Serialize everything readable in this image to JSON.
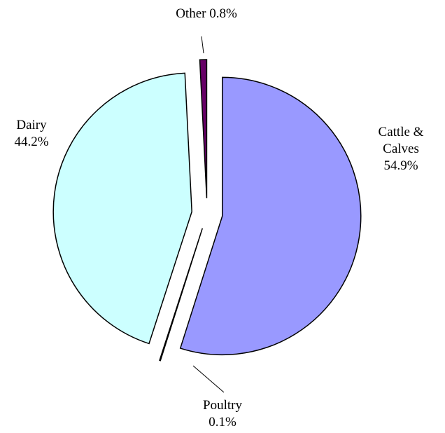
{
  "chart_data": {
    "type": "pie",
    "categories": [
      "Cattle & Calves",
      "Poultry",
      "Dairy",
      "Other"
    ],
    "values": [
      54.9,
      0.1,
      44.2,
      0.8
    ],
    "value_labels": [
      "54.9%",
      "0.1%",
      "44.2%",
      "0.8%"
    ],
    "colors": [
      "#9999ff",
      "#ffffcc",
      "#ccffff",
      "#660066"
    ]
  }
}
